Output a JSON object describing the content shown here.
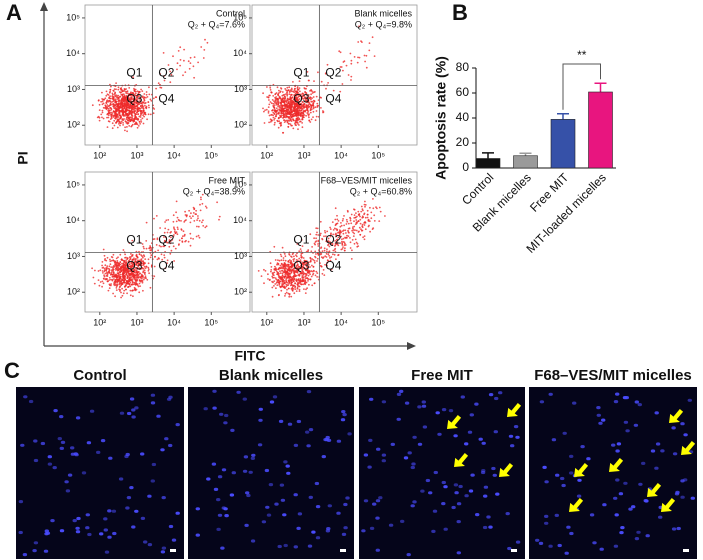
{
  "panel_labels": [
    "A",
    "B",
    "C"
  ],
  "flow_plots": {
    "xlabel": "FITC",
    "ylabel": "PI",
    "xticks": [
      {
        "value": 100,
        "label": "10²"
      },
      {
        "value": 1000,
        "label": "10³"
      },
      {
        "value": 10000,
        "label": "10⁴"
      },
      {
        "value": 100000,
        "label": "10⁵"
      }
    ],
    "yticks": [
      {
        "value": 100,
        "label": "10²"
      },
      {
        "value": 1000,
        "label": "10³"
      },
      {
        "value": 10000,
        "label": "10⁴"
      },
      {
        "value": 100000,
        "label": "10⁵"
      }
    ],
    "xlim": [
      40,
      1100000
    ],
    "ylim": [
      28,
      230000
    ],
    "log": true,
    "gate": {
      "x": 2600,
      "y": 1300
    },
    "quadrants": [
      "Q1",
      "Q2",
      "Q3",
      "Q4"
    ],
    "plots": [
      {
        "title": "Control",
        "note": "Q₂ + Q₄=7.6%"
      },
      {
        "title": "Blank micelles",
        "note": "Q₂ + Q₄=9.8%"
      },
      {
        "title": "Free MIT",
        "note": "Q₂ + Q₄=38.9%"
      },
      {
        "title": "F68–VES/MIT micelles",
        "note": "Q₂ + Q₄=60.8%"
      }
    ]
  },
  "chart_data": {
    "type": "bar",
    "ylabel": "Apoptosis rate (%)",
    "categories": [
      "Control",
      "Blank micelles",
      "Free MIT",
      "MIT-loaded micelles"
    ],
    "values": [
      7.6,
      9.8,
      38.9,
      60.8
    ],
    "errors": [
      4.5,
      2,
      4.5,
      7
    ],
    "colors": [
      "#111111",
      "#9a9a9a",
      "#3651a8",
      "#e8157f"
    ],
    "ylim": [
      0,
      80
    ],
    "yticks": [
      0,
      20,
      40,
      60,
      80
    ],
    "annotation": "**"
  },
  "images": {
    "titles": [
      "Control",
      "Blank micelles",
      "Free MIT",
      "F68–VES/MIT micelles"
    ]
  }
}
